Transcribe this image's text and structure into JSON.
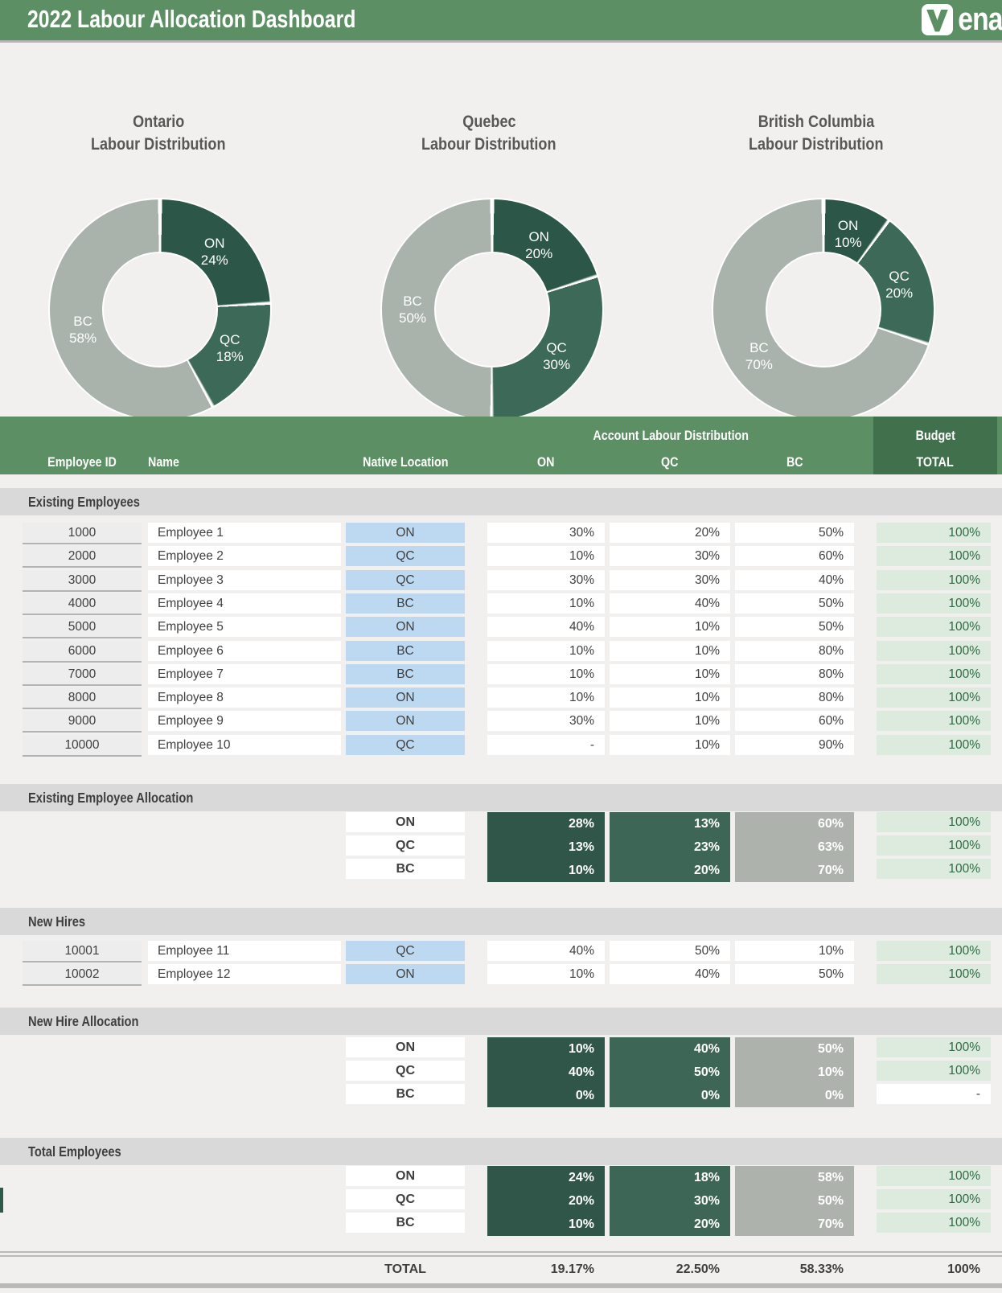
{
  "header": {
    "title": "2022 Labour Allocation Dashboard",
    "logo_mark": "V",
    "logo_text": "ena"
  },
  "chart_data": [
    {
      "type": "pie",
      "title": "Ontario Labour Distribution",
      "title_lines": [
        "Ontario",
        "Labour Distribution"
      ],
      "labels": [
        "ON",
        "QC",
        "BC"
      ],
      "values": [
        24,
        18,
        58
      ],
      "unit": "%",
      "legend": "none",
      "colors": [
        "#2c5748",
        "#3d6a58",
        "#a9b3ab"
      ]
    },
    {
      "type": "pie",
      "title": "Quebec Labour Distribution",
      "title_lines": [
        "Quebec",
        "Labour Distribution"
      ],
      "labels": [
        "ON",
        "QC",
        "BC"
      ],
      "values": [
        20,
        30,
        50
      ],
      "unit": "%",
      "legend": "none",
      "colors": [
        "#2c5748",
        "#3d6a58",
        "#a9b3ab"
      ]
    },
    {
      "type": "pie",
      "title": "British Columbia Labour Distribution",
      "title_lines": [
        "British Columbia",
        "Labour Distribution"
      ],
      "labels": [
        "ON",
        "QC",
        "BC"
      ],
      "values": [
        10,
        20,
        70
      ],
      "unit": "%",
      "legend": "none",
      "colors": [
        "#2c5748",
        "#3d6a58",
        "#a9b3ab"
      ]
    }
  ],
  "table": {
    "header": {
      "group_label": "Account Labour Distribution",
      "budget_label": "Budget",
      "columns": [
        "Employee ID",
        "Name",
        "Native Location",
        "ON",
        "QC",
        "BC",
        "TOTAL"
      ]
    },
    "sections": {
      "existing_employees": {
        "title": "Existing Employees",
        "rows": [
          {
            "id": "1000",
            "name": "Employee 1",
            "native": "ON",
            "on": "30%",
            "qc": "20%",
            "bc": "50%",
            "total": "100%"
          },
          {
            "id": "2000",
            "name": "Employee 2",
            "native": "QC",
            "on": "10%",
            "qc": "30%",
            "bc": "60%",
            "total": "100%"
          },
          {
            "id": "3000",
            "name": "Employee 3",
            "native": "QC",
            "on": "30%",
            "qc": "30%",
            "bc": "40%",
            "total": "100%"
          },
          {
            "id": "4000",
            "name": "Employee 4",
            "native": "BC",
            "on": "10%",
            "qc": "40%",
            "bc": "50%",
            "total": "100%"
          },
          {
            "id": "5000",
            "name": "Employee 5",
            "native": "ON",
            "on": "40%",
            "qc": "10%",
            "bc": "50%",
            "total": "100%"
          },
          {
            "id": "6000",
            "name": "Employee 6",
            "native": "BC",
            "on": "10%",
            "qc": "10%",
            "bc": "80%",
            "total": "100%"
          },
          {
            "id": "7000",
            "name": "Employee 7",
            "native": "BC",
            "on": "10%",
            "qc": "10%",
            "bc": "80%",
            "total": "100%"
          },
          {
            "id": "8000",
            "name": "Employee 8",
            "native": "ON",
            "on": "10%",
            "qc": "10%",
            "bc": "80%",
            "total": "100%"
          },
          {
            "id": "9000",
            "name": "Employee 9",
            "native": "ON",
            "on": "30%",
            "qc": "10%",
            "bc": "60%",
            "total": "100%"
          },
          {
            "id": "10000",
            "name": "Employee 10",
            "native": "QC",
            "on": "-",
            "qc": "10%",
            "bc": "90%",
            "total": "100%"
          }
        ]
      },
      "existing_allocation": {
        "title": "Existing Employee Allocation",
        "rows": [
          {
            "label": "ON",
            "on": "28%",
            "qc": "13%",
            "bc": "60%",
            "total": "100%"
          },
          {
            "label": "QC",
            "on": "13%",
            "qc": "23%",
            "bc": "63%",
            "total": "100%"
          },
          {
            "label": "BC",
            "on": "10%",
            "qc": "20%",
            "bc": "70%",
            "total": "100%"
          }
        ]
      },
      "new_hires": {
        "title": "New Hires",
        "rows": [
          {
            "id": "10001",
            "name": "Employee 11",
            "native": "QC",
            "on": "40%",
            "qc": "50%",
            "bc": "10%",
            "total": "100%"
          },
          {
            "id": "10002",
            "name": "Employee 12",
            "native": "ON",
            "on": "10%",
            "qc": "40%",
            "bc": "50%",
            "total": "100%"
          }
        ]
      },
      "new_hire_allocation": {
        "title": "New Hire Allocation",
        "rows": [
          {
            "label": "ON",
            "on": "10%",
            "qc": "40%",
            "bc": "50%",
            "total": "100%"
          },
          {
            "label": "QC",
            "on": "40%",
            "qc": "50%",
            "bc": "10%",
            "total": "100%"
          },
          {
            "label": "BC",
            "on": "0%",
            "qc": "0%",
            "bc": "0%",
            "total": "-",
            "total_plain": true
          }
        ]
      },
      "total_employees": {
        "title": "Total Employees",
        "rows": [
          {
            "label": "ON",
            "on": "24%",
            "qc": "18%",
            "bc": "58%",
            "total": "100%"
          },
          {
            "label": "QC",
            "on": "20%",
            "qc": "30%",
            "bc": "50%",
            "total": "100%"
          },
          {
            "label": "BC",
            "on": "10%",
            "qc": "20%",
            "bc": "70%",
            "total": "100%"
          }
        ]
      }
    },
    "footer": {
      "label": "TOTAL",
      "on": "19.17%",
      "qc": "22.50%",
      "bc": "58.33%",
      "total": "100%"
    }
  },
  "colors": {
    "header_green": "#5d8f64",
    "budget_green": "#40714c",
    "section_band_gray": "#d9d9d9",
    "page_background": "#f1f0ee",
    "id_cell_gray": "#ededed",
    "native_location_blue": "#bdd9f1",
    "total_cell_green": "#dcebdd",
    "total_text_green": "#2e6b45",
    "allocation_on_dark_green": "#30564a",
    "allocation_qc_green": "#3e6656",
    "allocation_bc_gray": "#adb3ac",
    "donut_on": "#2c5748",
    "donut_qc": "#3d6a58",
    "donut_bc": "#a9b3ab"
  }
}
